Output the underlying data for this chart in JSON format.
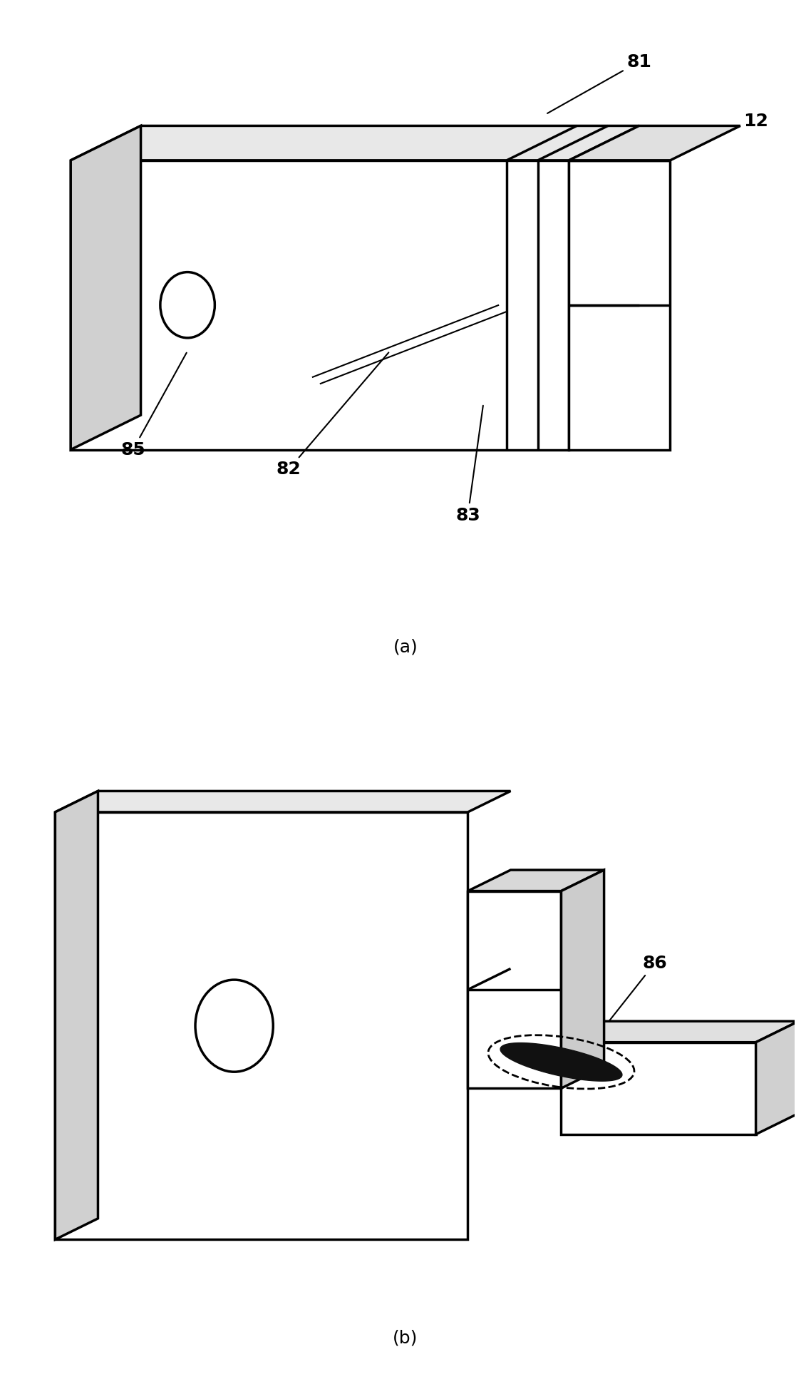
{
  "background_color": "#ffffff",
  "line_color": "#000000",
  "lw": 2.5,
  "annotation_fontsize": 18,
  "subfig_label_fontsize": 18,
  "fig_a_label": "(a)",
  "fig_b_label": "(b)"
}
